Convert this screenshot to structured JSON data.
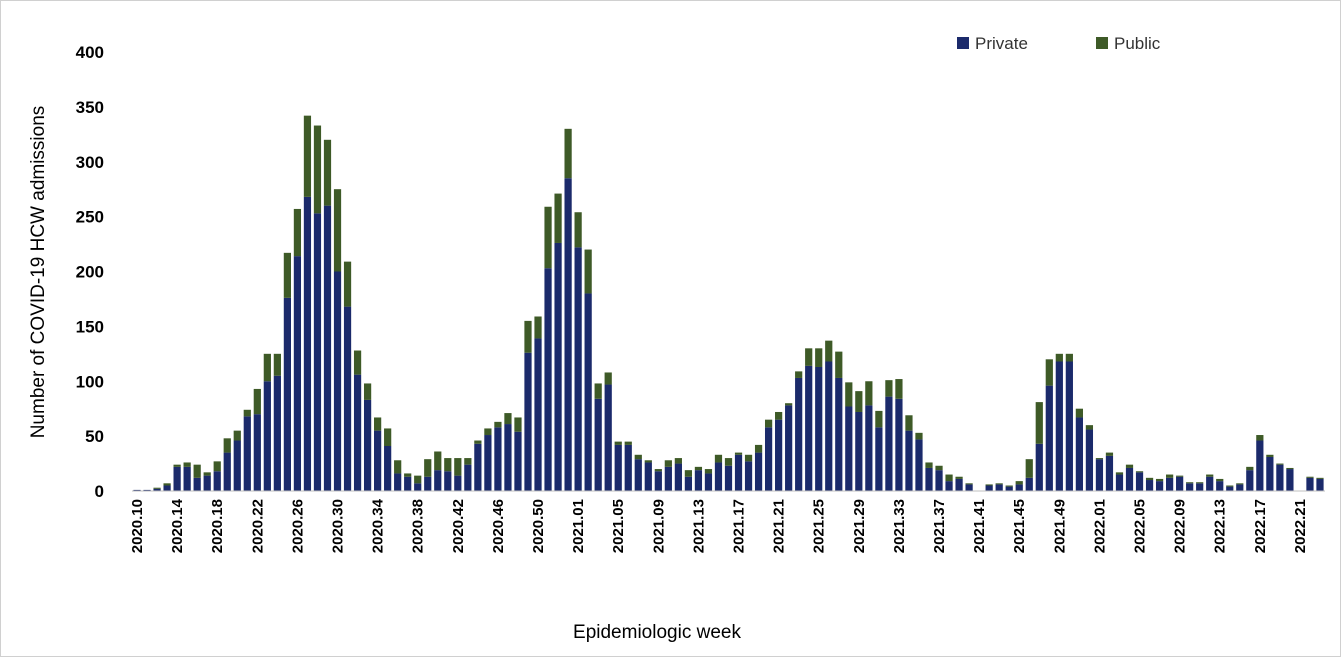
{
  "chart_data": {
    "type": "stacked_bar",
    "x_label": "Epidemiologic week",
    "y_label": "Number of COVID-19 HCW admissions",
    "categories": [
      "2020.10",
      null,
      null,
      null,
      "2020.14",
      null,
      null,
      null,
      "2020.18",
      null,
      null,
      null,
      "2020.22",
      null,
      null,
      null,
      "2020.26",
      null,
      null,
      null,
      "2020.30",
      null,
      null,
      null,
      "2020.34",
      null,
      null,
      null,
      "2020.38",
      null,
      null,
      null,
      "2020.42",
      null,
      null,
      null,
      "2020.46",
      null,
      null,
      null,
      "2020.50",
      null,
      null,
      null,
      "2021.01",
      null,
      null,
      null,
      "2021.05",
      null,
      null,
      null,
      "2021.09",
      null,
      null,
      null,
      "2021.13",
      null,
      null,
      null,
      "2021.17",
      null,
      null,
      null,
      "2021.21",
      null,
      null,
      null,
      "2021.25",
      null,
      null,
      null,
      "2021.29",
      null,
      null,
      null,
      "2021.33",
      null,
      null,
      null,
      "2021.37",
      null,
      null,
      null,
      "2021.41",
      null,
      null,
      null,
      "2021.45",
      null,
      null,
      null,
      "2021.49",
      null,
      null,
      null,
      "2022.01",
      null,
      null,
      null,
      "2022.05",
      null,
      null,
      null,
      "2022.09",
      null,
      null,
      null,
      "2022.13",
      null,
      null,
      null,
      "2022.17",
      null,
      null,
      null,
      "2022.21",
      null,
      null
    ],
    "series": [
      {
        "name": "Private",
        "color": "#1b2a6b",
        "values": [
          1,
          1,
          2,
          5,
          22,
          22,
          12,
          14,
          18,
          35,
          46,
          68,
          70,
          100,
          105,
          176,
          214,
          268,
          253,
          260,
          200,
          168,
          106,
          83,
          55,
          41,
          16,
          13,
          7,
          13,
          19,
          18,
          14,
          24,
          43,
          51,
          58,
          61,
          54,
          126,
          139,
          203,
          226,
          285,
          222,
          180,
          84,
          97,
          42,
          42,
          29,
          26,
          18,
          22,
          25,
          13,
          19,
          16,
          26,
          23,
          33,
          27,
          35,
          58,
          65,
          78,
          103,
          114,
          113,
          118,
          103,
          77,
          72,
          78,
          58,
          86,
          84,
          55,
          47,
          21,
          19,
          9,
          11,
          6,
          0,
          5,
          6,
          4,
          6,
          12,
          43,
          96,
          118,
          118,
          67,
          56,
          29,
          32,
          15,
          21,
          17,
          10,
          9,
          12,
          13,
          7,
          7,
          13,
          9,
          4,
          6,
          19,
          46,
          31,
          24,
          20,
          0,
          12,
          11
        ]
      },
      {
        "name": "Public",
        "color": "#3e5a27",
        "values": [
          0,
          0,
          1,
          2,
          2,
          4,
          12,
          3,
          9,
          13,
          9,
          6,
          23,
          25,
          20,
          41,
          43,
          74,
          80,
          60,
          75,
          41,
          22,
          15,
          12,
          16,
          12,
          3,
          7,
          16,
          17,
          12,
          16,
          6,
          3,
          6,
          5,
          10,
          13,
          29,
          20,
          56,
          45,
          45,
          32,
          40,
          14,
          11,
          3,
          3,
          4,
          2,
          2,
          6,
          5,
          6,
          3,
          4,
          7,
          7,
          2,
          6,
          7,
          7,
          7,
          2,
          6,
          16,
          17,
          19,
          24,
          22,
          19,
          22,
          15,
          15,
          18,
          14,
          6,
          5,
          4,
          6,
          2,
          1,
          0,
          1,
          1,
          1,
          3,
          17,
          38,
          24,
          7,
          7,
          8,
          4,
          1,
          3,
          2,
          3,
          1,
          2,
          2,
          3,
          1,
          1,
          1,
          2,
          2,
          1,
          1,
          3,
          5,
          2,
          1,
          1,
          0,
          1,
          1
        ]
      }
    ],
    "ylim": [
      0,
      400
    ],
    "yticks": [
      0,
      50,
      100,
      150,
      200,
      250,
      300,
      350,
      400
    ],
    "legend": "top-right"
  }
}
